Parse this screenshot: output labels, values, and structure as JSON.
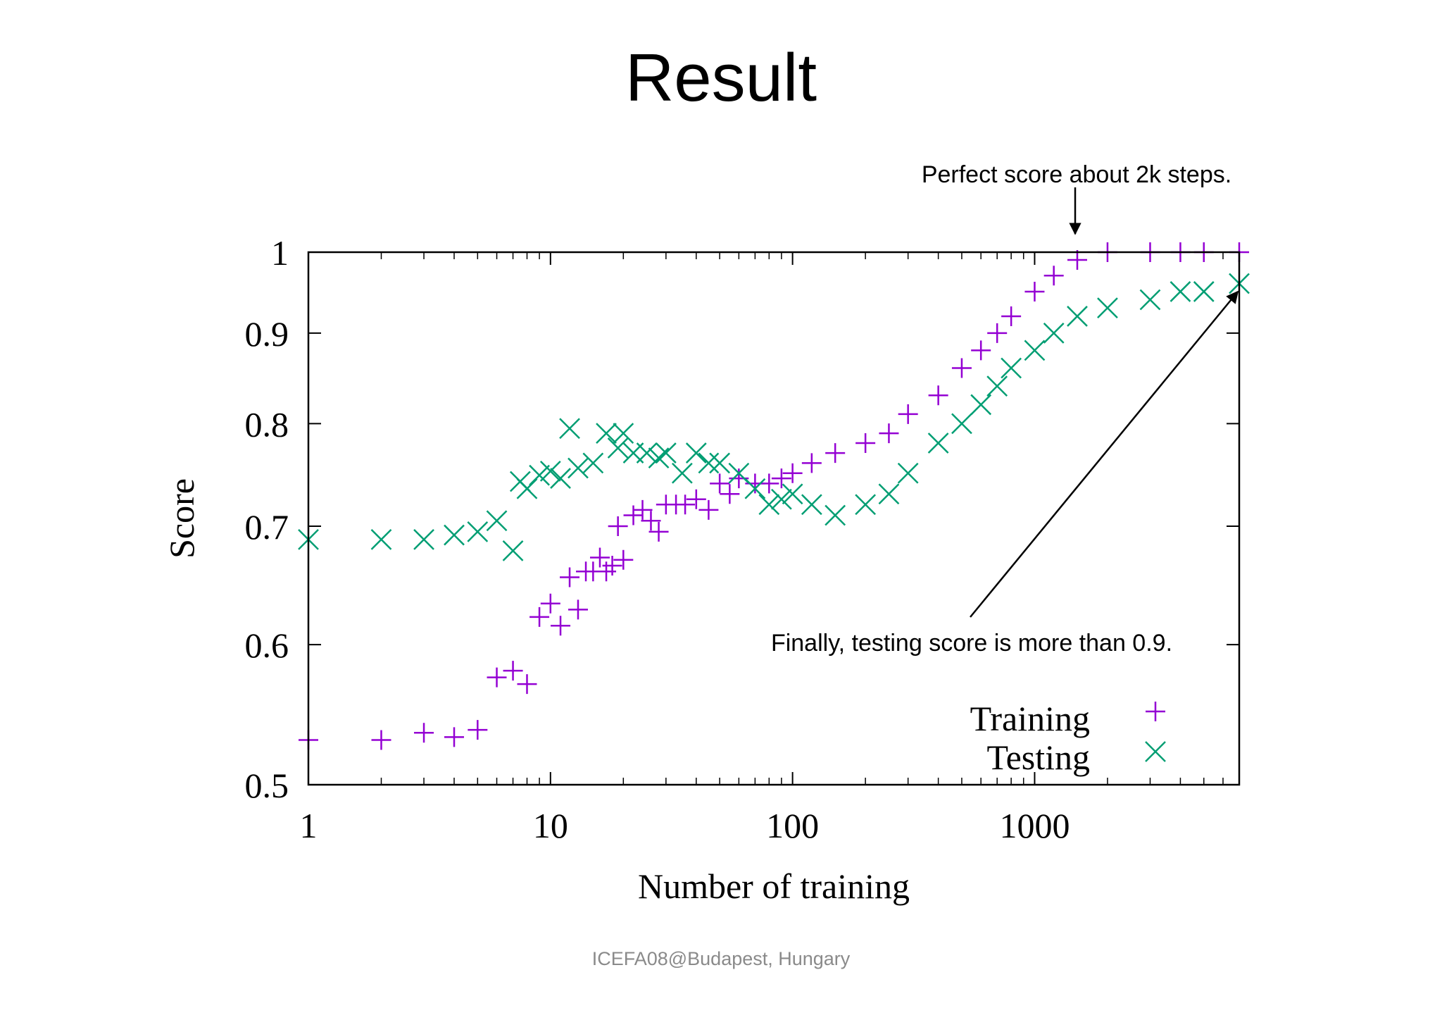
{
  "slide": {
    "title": "Result",
    "footer": "ICEFA08@Budapest, Hungary"
  },
  "chart_data": {
    "type": "scatter",
    "title": "",
    "xlabel": "Number of training",
    "ylabel": "Score",
    "xscale": "log",
    "yscale": "log",
    "xlim": [
      1,
      7000
    ],
    "ylim": [
      0.5,
      1
    ],
    "xticks": [
      1,
      10,
      100,
      1000
    ],
    "xtick_labels": [
      "1",
      "10",
      "100",
      "1000"
    ],
    "yticks": [
      0.5,
      0.6,
      0.7,
      0.8,
      0.9,
      1
    ],
    "ytick_labels": [
      "0.5",
      "0.6",
      "0.7",
      "0.8",
      "0.9",
      "1"
    ],
    "grid": false,
    "legend_position": "bottom-right",
    "colors": {
      "training": "#9400d3",
      "testing": "#009e73",
      "axis": "#000000"
    },
    "series": [
      {
        "name": "Training",
        "marker": "plus",
        "x": [
          1,
          2,
          3,
          4,
          5,
          6,
          7,
          8,
          9,
          10,
          11,
          12,
          13,
          14,
          15,
          16,
          17,
          18,
          19,
          20,
          22,
          24,
          26,
          28,
          30,
          33,
          36,
          40,
          45,
          50,
          55,
          60,
          70,
          80,
          90,
          100,
          120,
          150,
          200,
          250,
          300,
          400,
          500,
          600,
          700,
          800,
          1000,
          1200,
          1500,
          2000,
          3000,
          4000,
          5000,
          7000
        ],
        "y": [
          0.53,
          0.53,
          0.535,
          0.532,
          0.537,
          0.575,
          0.58,
          0.57,
          0.622,
          0.633,
          0.615,
          0.655,
          0.628,
          0.66,
          0.66,
          0.672,
          0.66,
          0.665,
          0.7,
          0.67,
          0.71,
          0.715,
          0.705,
          0.695,
          0.72,
          0.72,
          0.72,
          0.725,
          0.715,
          0.74,
          0.73,
          0.745,
          0.74,
          0.74,
          0.745,
          0.75,
          0.76,
          0.77,
          0.78,
          0.79,
          0.81,
          0.83,
          0.86,
          0.88,
          0.9,
          0.92,
          0.95,
          0.97,
          0.99,
          1.0,
          1.0,
          1.0,
          1.0,
          1.0
        ]
      },
      {
        "name": "Testing",
        "marker": "cross",
        "x": [
          1,
          2,
          3,
          4,
          5,
          6,
          7,
          7.5,
          8,
          9,
          10,
          11,
          12,
          13,
          15,
          17,
          19,
          20,
          22,
          25,
          28,
          30,
          35,
          40,
          45,
          50,
          60,
          70,
          80,
          90,
          100,
          120,
          150,
          200,
          250,
          300,
          400,
          500,
          600,
          700,
          800,
          1000,
          1200,
          1500,
          2000,
          3000,
          4000,
          5000,
          7000
        ],
        "y": [
          0.688,
          0.688,
          0.688,
          0.692,
          0.695,
          0.705,
          0.678,
          0.742,
          0.735,
          0.748,
          0.752,
          0.745,
          0.795,
          0.755,
          0.76,
          0.79,
          0.775,
          0.79,
          0.77,
          0.77,
          0.765,
          0.77,
          0.75,
          0.77,
          0.76,
          0.76,
          0.75,
          0.735,
          0.72,
          0.725,
          0.73,
          0.72,
          0.71,
          0.72,
          0.73,
          0.75,
          0.78,
          0.8,
          0.82,
          0.84,
          0.86,
          0.88,
          0.9,
          0.92,
          0.93,
          0.94,
          0.95,
          0.95,
          0.96
        ]
      }
    ],
    "annotations": [
      {
        "text": "Perfect score about 2k steps."
      },
      {
        "text": "Finally, testing score is more than 0.9."
      }
    ]
  }
}
